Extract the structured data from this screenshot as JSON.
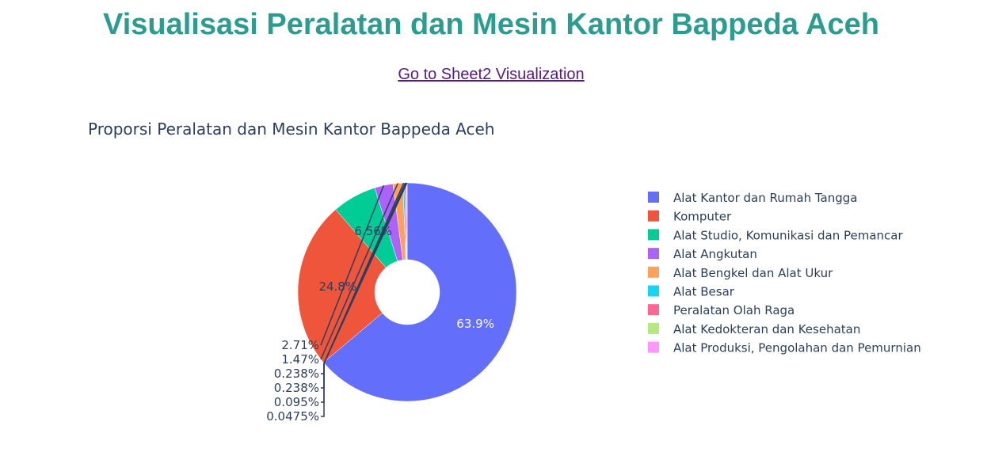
{
  "page": {
    "title": "Visualisasi Peralatan dan Mesin Kantor Bappeda Aceh",
    "link_text": "Go to Sheet2 Visualization"
  },
  "chart_data": {
    "type": "pie",
    "hole": true,
    "title": "Proporsi Peralatan dan Mesin Kantor Bappeda Aceh",
    "legend_position": "right",
    "labels": [
      "Alat Kantor dan Rumah Tangga",
      "Komputer",
      "Alat Studio, Komunikasi dan Pemancar",
      "Alat Angkutan",
      "Alat Bengkel dan Alat Ukur",
      "Alat Besar",
      "Peralatan Olah Raga",
      "Alat Kedokteran dan Kesehatan",
      "Alat Produksi, Pengolahan dan Pemurnian"
    ],
    "values": [
      63.9,
      24.8,
      6.56,
      2.71,
      1.47,
      0.238,
      0.238,
      0.095,
      0.0475
    ],
    "percent_text": [
      "63.9%",
      "24.8%",
      "6.56%",
      "2.71%",
      "1.47%",
      "0.238%",
      "0.238%",
      "0.095%",
      "0.0475%"
    ],
    "colors": [
      "#636efa",
      "#ef553b",
      "#00cc96",
      "#ab63fa",
      "#ffa15a",
      "#19d3f3",
      "#ff6692",
      "#b6e880",
      "#ff97ff"
    ]
  }
}
